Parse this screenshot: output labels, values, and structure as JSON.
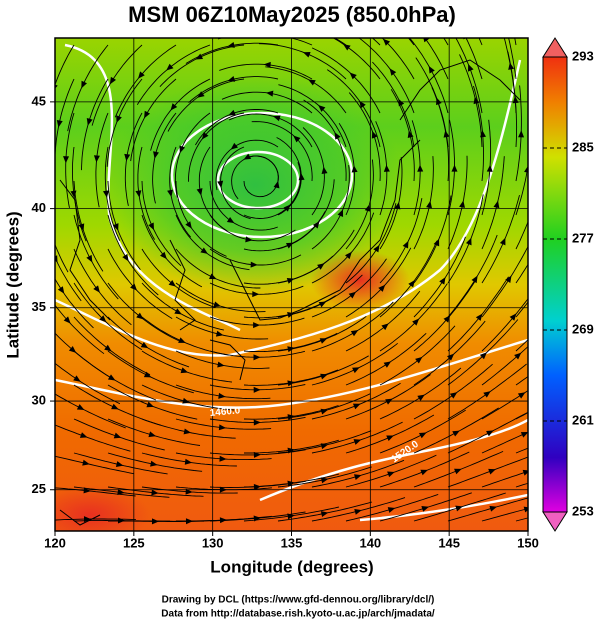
{
  "chart_data": {
    "type": "map",
    "title": "MSM 06Z10May2025 (850.0hPa)",
    "xlabel": "Longitude (degrees)",
    "ylabel": "Latitude  (degrees)",
    "xlim": [
      120,
      150
    ],
    "ylim": [
      22.6,
      47.8
    ],
    "xticks": [
      120,
      125,
      130,
      135,
      140,
      145,
      150
    ],
    "yticks": [
      25,
      30,
      35,
      40,
      45
    ],
    "grid": true,
    "colorbar": {
      "lim": [
        253,
        293
      ],
      "ticks": [
        253,
        261,
        269,
        277,
        285,
        293
      ]
    },
    "annotations": [
      "1460.0",
      "1520.0"
    ],
    "credits": [
      "Drawing by DCL (https://www.gfd-dennou.org/library/dcl/)",
      "Data from http://database.rish.kyoto-u.ac.jp/arch/jmadata/"
    ]
  }
}
